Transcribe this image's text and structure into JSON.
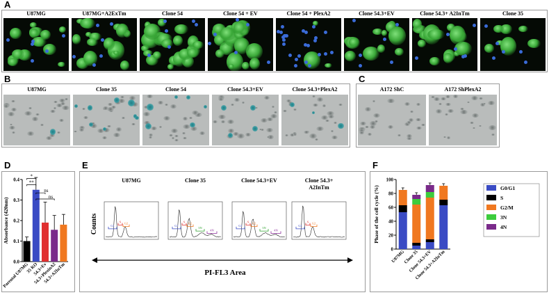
{
  "panels": {
    "A": {
      "label": "A",
      "titles": [
        "U87MG",
        "U87MG+A2ExTm",
        "Clone 54",
        "Clone 54 + EV",
        "Clone 54 + PlexA2",
        "Clone 54.3+EV",
        "Clone 54.3+ A2InTm",
        "Clone 35"
      ]
    },
    "B": {
      "label": "B",
      "titles": [
        "U87MG",
        "Clone 35",
        "Clone 54",
        "Clone 54.3+EV",
        "Clone 54.3+PlexA2"
      ]
    },
    "C": {
      "label": "C",
      "titles": [
        "A172 ShC",
        "A172 ShPlexA2"
      ]
    },
    "D": {
      "label": "D",
      "ylabel": "Absorbance (420nm)",
      "significance": [
        "*",
        "**",
        "ns",
        "ns"
      ]
    },
    "E": {
      "label": "E",
      "titles": [
        "U87MG",
        "Clone 35",
        "Clone 54.3+EV",
        "Clone 54.3+\nA2InTm"
      ],
      "ylabel": "Counts",
      "xlabel": "PI-FL3 Area"
    },
    "F": {
      "label": "F",
      "ylabel": "Phase of the cell cycle (%)"
    }
  },
  "chart_data": [
    {
      "type": "bar",
      "panel": "D",
      "categories": [
        "Parental U87MG",
        "35 KO",
        "54.3+Ev",
        "54.3+PlexinA2",
        "54.3+A2InTm"
      ],
      "values": [
        0.1,
        0.35,
        0.19,
        0.155,
        0.18
      ],
      "errors": [
        0.02,
        0.06,
        0.1,
        0.07,
        0.05
      ],
      "colors": [
        "#000000",
        "#3a4bc4",
        "#e03030",
        "#7a2a8a",
        "#f07820"
      ],
      "ylabel": "Absorbance (420nm)",
      "ylim": [
        0,
        0.4
      ],
      "yticks": [
        0.0,
        0.1,
        0.2,
        0.3,
        0.4
      ]
    },
    {
      "type": "line",
      "panel": "E",
      "histograms": [
        "U87MG",
        "Clone 35",
        "Clone 54.3+EV",
        "Clone 54.3+ A2InTm"
      ],
      "gates": [
        [
          "G1",
          "S",
          "G2"
        ],
        [
          "G1",
          "S",
          "G2",
          "3N",
          "4N"
        ],
        [
          "G1",
          "S",
          "G2",
          "3N",
          "4N"
        ],
        [
          "G1",
          "S",
          "G2"
        ]
      ],
      "ylabel": "Counts",
      "xlabel": "PI-FL3 Area"
    },
    {
      "type": "bar",
      "panel": "F",
      "stacked": true,
      "categories": [
        "U87MG",
        "Clone 35",
        "Clone 54.3+EV",
        "Clone 54.3+A2InTm"
      ],
      "series": [
        {
          "name": "G0/G1",
          "color": "#3a4bc4",
          "values": [
            53,
            5,
            10,
            63
          ]
        },
        {
          "name": "S",
          "color": "#000000",
          "values": [
            10,
            4,
            4,
            8
          ]
        },
        {
          "name": "G2/M",
          "color": "#f07820",
          "values": [
            22,
            55,
            60,
            20
          ]
        },
        {
          "name": "3N",
          "color": "#3ccc3c",
          "values": [
            0,
            8,
            8,
            0
          ]
        },
        {
          "name": "4N",
          "color": "#7a2a8a",
          "values": [
            0,
            6,
            10,
            0
          ]
        }
      ],
      "ylabel": "Phase of the cell cycle (%)",
      "ylim": [
        0,
        100
      ],
      "yticks": [
        0,
        20,
        40,
        60,
        80,
        100
      ]
    }
  ]
}
